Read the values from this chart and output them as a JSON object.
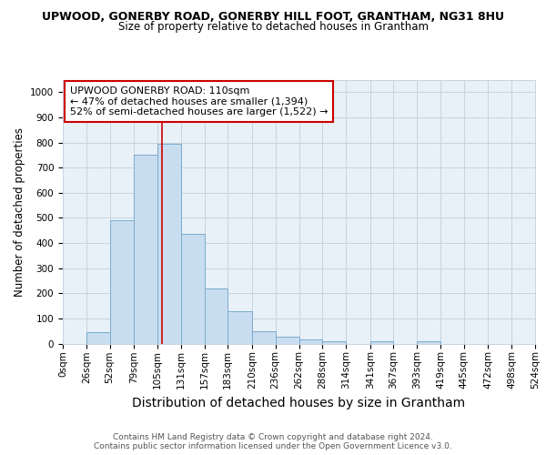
{
  "title": "UPWOOD, GONERBY ROAD, GONERBY HILL FOOT, GRANTHAM, NG31 8HU",
  "subtitle": "Size of property relative to detached houses in Grantham",
  "xlabel": "Distribution of detached houses by size in Grantham",
  "ylabel": "Number of detached properties",
  "bin_edges": [
    0,
    26,
    52,
    79,
    105,
    131,
    157,
    183,
    210,
    236,
    262,
    288,
    314,
    341,
    367,
    393,
    419,
    445,
    472,
    498,
    524
  ],
  "bar_heights": [
    0,
    45,
    490,
    750,
    795,
    435,
    220,
    130,
    50,
    28,
    15,
    10,
    0,
    8,
    0,
    8,
    0,
    0,
    0,
    0
  ],
  "bar_color": "#c9ddf0",
  "bar_edge_color": "#7aabcc",
  "grid_color": "#c8d4e0",
  "vline_x": 110,
  "vline_color": "#cc0000",
  "annotation_text": "UPWOOD GONERBY ROAD: 110sqm\n← 47% of detached houses are smaller (1,394)\n52% of semi-detached houses are larger (1,522) →",
  "annotation_box_color": "#cc0000",
  "ylim": [
    0,
    1050
  ],
  "yticks": [
    0,
    100,
    200,
    300,
    400,
    500,
    600,
    700,
    800,
    900,
    1000
  ],
  "footer_text": "Contains HM Land Registry data © Crown copyright and database right 2024.\nContains public sector information licensed under the Open Government Licence v3.0.",
  "bg_color": "#ffffff",
  "plot_bg_color": "#e8f0f8",
  "title_fontsize": 9.0,
  "subtitle_fontsize": 8.5,
  "xlabel_fontsize": 10,
  "ylabel_fontsize": 8.5,
  "tick_fontsize": 7.5,
  "footer_fontsize": 6.5
}
